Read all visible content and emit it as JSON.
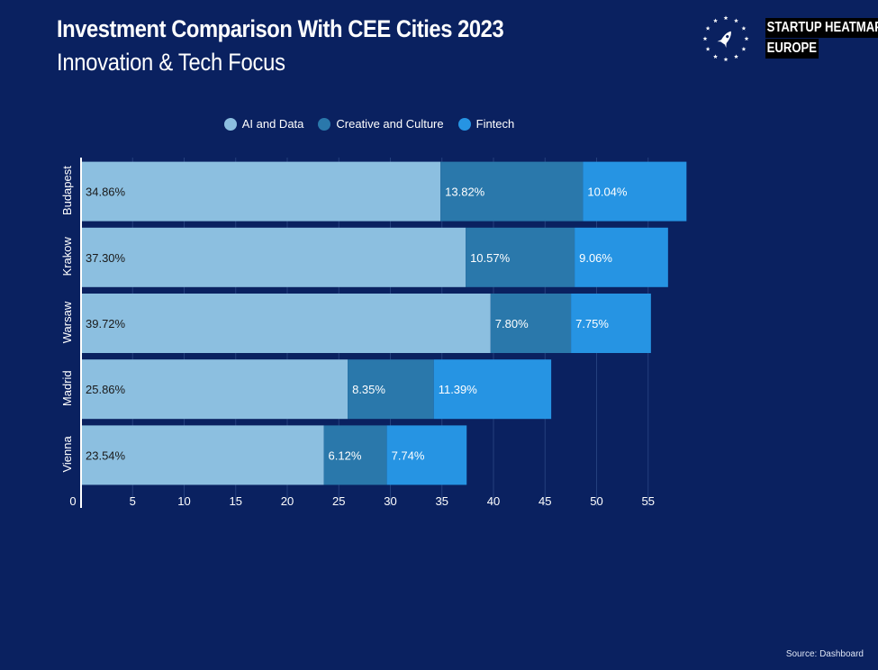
{
  "header": {
    "title": "Investment Comparison With CEE Cities 2023",
    "subtitle": "Innovation & Tech Focus"
  },
  "logo": {
    "line1": "STARTUP HEATMAP",
    "line2": "EUROPE",
    "icon": "rocket-in-star-ring-icon"
  },
  "source": "Source: Dashboard",
  "colors": {
    "background": "#0a2160",
    "ai": "#8cbfe0",
    "creative": "#2a78ab",
    "fintech": "#2694e3",
    "grid": "#24407d"
  },
  "chart_data": {
    "type": "bar",
    "orientation": "horizontal",
    "stacked": true,
    "categories": [
      "Budapest",
      "Krakow",
      "Warsaw",
      "Madrid",
      "Vienna"
    ],
    "series": [
      {
        "name": "AI and Data",
        "values": [
          34.86,
          37.3,
          39.72,
          25.86,
          23.54
        ],
        "labels": [
          "34.86%",
          "37.30%",
          "39.72%",
          "25.86%",
          "23.54%"
        ],
        "color": "#8cbfe0"
      },
      {
        "name": "Creative and Culture",
        "values": [
          13.82,
          10.57,
          7.8,
          8.35,
          6.12
        ],
        "labels": [
          "13.82%",
          "10.57%",
          "7.80%",
          "8.35%",
          "6.12%"
        ],
        "color": "#2a78ab"
      },
      {
        "name": "Fintech",
        "values": [
          10.04,
          9.06,
          7.75,
          11.39,
          7.74
        ],
        "labels": [
          "10.04%",
          "9.06%",
          "7.75%",
          "11.39%",
          "7.74%"
        ],
        "color": "#2694e3"
      }
    ],
    "xlim": [
      0,
      59
    ],
    "xticks": [
      "0",
      "5",
      "10",
      "15",
      "20",
      "25",
      "30",
      "35",
      "40",
      "45",
      "50",
      "55"
    ],
    "grid": true,
    "legend_position": "top-center"
  }
}
